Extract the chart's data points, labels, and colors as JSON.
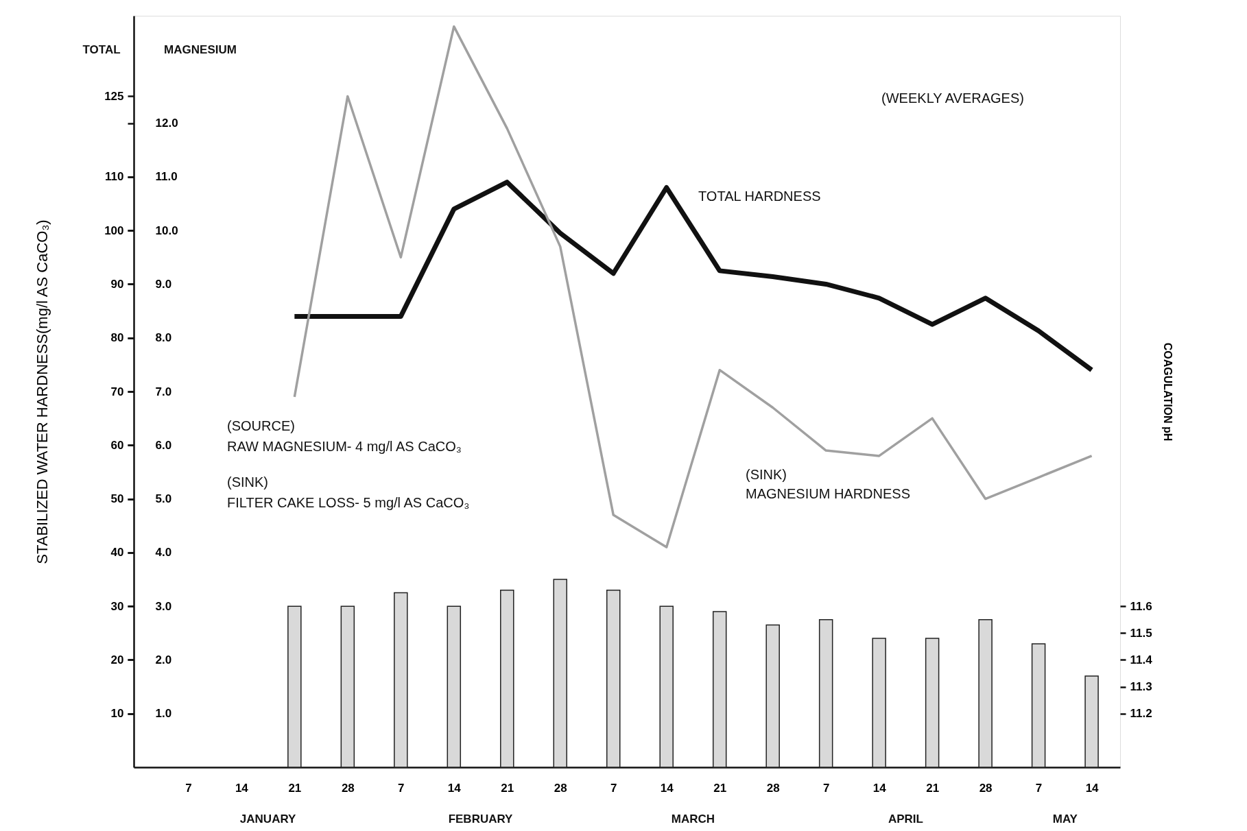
{
  "chart_data": {
    "type": "line",
    "ylabel": "STABILIZED WATER HARDNESS(mg/l AS CaCO₃)",
    "y2label": "COAGULATION pH",
    "categories": [
      "7",
      "14",
      "21",
      "28",
      "7",
      "14",
      "21",
      "28",
      "7",
      "14",
      "21",
      "28",
      "7",
      "14",
      "21",
      "28",
      "7",
      "14"
    ],
    "ylim": [
      0,
      140
    ],
    "yticks": [
      10,
      20,
      30,
      40,
      50,
      60,
      70,
      80,
      90,
      100,
      110,
      125
    ],
    "y3lim": [
      0,
      14
    ],
    "y3ticks": [
      {
        "value": 1,
        "label": "1.0"
      },
      {
        "value": 2,
        "label": "2.0"
      },
      {
        "value": 3,
        "label": "3.0"
      },
      {
        "value": 4,
        "label": "4.0"
      },
      {
        "value": 5,
        "label": "5.0"
      },
      {
        "value": 6,
        "label": "6.0"
      },
      {
        "value": 7,
        "label": "7.0"
      },
      {
        "value": 8,
        "label": "8.0"
      },
      {
        "value": 9,
        "label": "9.0"
      },
      {
        "value": 10,
        "label": "10.0"
      },
      {
        "value": 11,
        "label": "11.0"
      },
      {
        "value": 12,
        "label": "12.0"
      }
    ],
    "y2lim": [
      11.0,
      13.8
    ],
    "y2ticks": [
      11.2,
      11.3,
      11.4,
      11.5,
      11.6
    ],
    "series": [
      {
        "type": "bar",
        "axis": "y2",
        "color": "#d9d9d9",
        "values": [
          null,
          null,
          11.6,
          11.6,
          11.65,
          11.6,
          11.66,
          11.7,
          11.66,
          11.6,
          11.58,
          11.53,
          11.55,
          11.48,
          11.48,
          11.55,
          11.46,
          11.34
        ]
      },
      {
        "name": "TOTAL HARDNESS",
        "axis": "y",
        "color": "#111111",
        "values": [
          null,
          null,
          84,
          84,
          84,
          104,
          109,
          99.5,
          92,
          108,
          92.5,
          91.4,
          90,
          87.4,
          82.5,
          87.4,
          81.3,
          74
        ]
      },
      {
        "name": "(SINK)\nMAGNESIUM HARDNESS",
        "axis": "y3",
        "color": "#a0a0a0",
        "values": [
          null,
          null,
          6.9,
          12.5,
          9.5,
          13.8,
          11.9,
          9.7,
          4.7,
          4.1,
          7.4,
          6.7,
          5.9,
          5.8,
          6.5,
          5.0,
          5.4,
          5.8
        ]
      }
    ],
    "annotations": [
      "(WEEKLY AVERAGES)",
      "TOTAL",
      "MAGNESIUM",
      "(SOURCE)\nRAW MAGNESIUM- 4 mg/l AS CaCO₃",
      "(SINK)\nFILTER CAKE LOSS- 5 mg/l AS CaCO₃",
      "JANUARY",
      "FEBRUARY",
      "MARCH",
      "APRIL",
      "MAY"
    ],
    "grid": false,
    "marker": "none",
    "line_style": "solid"
  }
}
